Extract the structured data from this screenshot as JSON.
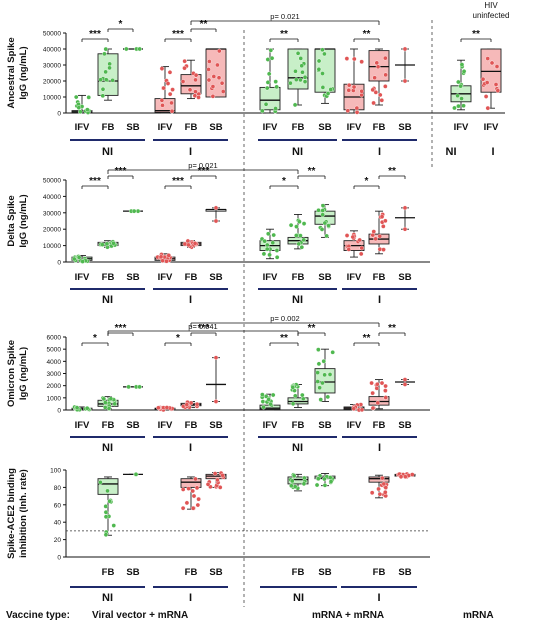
{
  "chart_data": [
    {
      "type": "box",
      "ylabel": "Ancestral Spike IgG (ng/mL)",
      "yticks": [
        "0",
        "10000",
        "20000",
        "30000",
        "40000",
        "50000"
      ],
      "ylim": [
        0,
        50000
      ],
      "pvalue": "p= 0.021",
      "groups": [
        {
          "ticks": [
            "IFV",
            "FB",
            "SB"
          ],
          "label": "NI"
        },
        {
          "ticks": [
            "IFV",
            "FB",
            "SB"
          ],
          "label": "I"
        },
        {
          "ticks": [
            "IFV",
            "FB",
            "SB"
          ],
          "label": "NI"
        },
        {
          "ticks": [
            "IFV",
            "FB",
            "SB"
          ],
          "label": "I"
        },
        {
          "ticks": [
            "IFV",
            "IFV"
          ],
          "labels": [
            "NI",
            "I"
          ]
        }
      ],
      "extra_header": "HIV uninfected",
      "significance": [
        {
          "from": "IFV",
          "to": "FB",
          "group": 0,
          "mark": "***"
        },
        {
          "from": "FB",
          "to": "SB",
          "group": 0,
          "mark": "*"
        },
        {
          "from": "IFV",
          "to": "FB",
          "group": 1,
          "mark": "***"
        },
        {
          "from": "FB",
          "to": "SB",
          "group": 1,
          "mark": "**"
        },
        {
          "from": "IFV",
          "to": "FB",
          "group": 2,
          "mark": "**"
        },
        {
          "from": "IFV",
          "to": "FB",
          "group": 3,
          "mark": "**"
        },
        {
          "from": "NI",
          "to": "I",
          "group": 4,
          "mark": "**"
        }
      ],
      "boxes": [
        {
          "group": 0,
          "tick": 0,
          "color": "green",
          "q1": 300,
          "median": 800,
          "q3": 1500,
          "min": 0,
          "max": 11000
        },
        {
          "group": 0,
          "tick": 1,
          "color": "green",
          "q1": 11000,
          "median": 20000,
          "q3": 37000,
          "min": 8000,
          "max": 40000
        },
        {
          "group": 0,
          "tick": 2,
          "color": "green",
          "q1": 40000,
          "median": 40000,
          "q3": 40000,
          "min": 40000,
          "max": 40000
        },
        {
          "group": 1,
          "tick": 0,
          "color": "red",
          "q1": 500,
          "median": 1500,
          "q3": 9000,
          "min": 0,
          "max": 29000
        },
        {
          "group": 1,
          "tick": 1,
          "color": "red",
          "q1": 12000,
          "median": 17000,
          "q3": 24000,
          "min": 9000,
          "max": 33000
        },
        {
          "group": 1,
          "tick": 2,
          "color": "red",
          "q1": 10000,
          "median": 40000,
          "q3": 40000,
          "min": 10000,
          "max": 40000
        },
        {
          "group": 2,
          "tick": 0,
          "color": "green",
          "q1": 2000,
          "median": 8000,
          "q3": 16000,
          "min": 0,
          "max": 40000
        },
        {
          "group": 2,
          "tick": 1,
          "color": "green",
          "q1": 15000,
          "median": 22000,
          "q3": 40000,
          "min": 5000,
          "max": 40000
        },
        {
          "group": 2,
          "tick": 2,
          "color": "green",
          "q1": 13000,
          "median": 40000,
          "q3": 40000,
          "min": 6000,
          "max": 40000
        },
        {
          "group": 3,
          "tick": 0,
          "color": "red",
          "q1": 2000,
          "median": 10000,
          "q3": 18000,
          "min": 0,
          "max": 40000
        },
        {
          "group": 3,
          "tick": 1,
          "color": "red",
          "q1": 20000,
          "median": 29000,
          "q3": 39000,
          "min": 5000,
          "max": 40000
        },
        {
          "group": 3,
          "tick": 2,
          "color": "black",
          "q1": 30000,
          "median": 30000,
          "q3": 30000,
          "min": 20000,
          "max": 40000
        },
        {
          "group": 4,
          "tick": 0,
          "color": "green",
          "q1": 7000,
          "median": 12000,
          "q3": 17000,
          "min": 2000,
          "max": 33000
        },
        {
          "group": 4,
          "tick": 1,
          "color": "red",
          "q1": 13000,
          "median": 26000,
          "q3": 40000,
          "min": 3000,
          "max": 40000
        }
      ]
    },
    {
      "type": "box",
      "ylabel": "Delta Spike IgG (ng/mL)",
      "yticks": [
        "0",
        "10000",
        "20000",
        "30000",
        "40000",
        "50000"
      ],
      "ylim": [
        0,
        50000
      ],
      "pvalue": "p= 0.021",
      "groups": [
        {
          "ticks": [
            "IFV",
            "FB",
            "SB"
          ],
          "label": "NI"
        },
        {
          "ticks": [
            "IFV",
            "FB",
            "SB"
          ],
          "label": "I"
        },
        {
          "ticks": [
            "IFV",
            "FB",
            "SB"
          ],
          "label": "NI"
        },
        {
          "ticks": [
            "IFV",
            "FB",
            "SB"
          ],
          "label": "I"
        }
      ],
      "significance": [
        {
          "from": "IFV",
          "to": "FB",
          "group": 0,
          "mark": "***"
        },
        {
          "from": "FB",
          "to": "SB",
          "group": 0,
          "mark": "***"
        },
        {
          "from": "IFV",
          "to": "FB",
          "group": 1,
          "mark": "***"
        },
        {
          "from": "FB",
          "to": "SB",
          "group": 1,
          "mark": "***"
        },
        {
          "from": "IFV",
          "to": "FB",
          "group": 2,
          "mark": "*"
        },
        {
          "from": "FB",
          "to": "SB",
          "group": 2,
          "mark": "**"
        },
        {
          "from": "IFV",
          "to": "FB",
          "group": 3,
          "mark": "*"
        },
        {
          "from": "FB",
          "to": "SB",
          "group": 3,
          "mark": "**"
        }
      ],
      "boxes": [
        {
          "group": 0,
          "tick": 0,
          "color": "green",
          "q1": 1000,
          "median": 2000,
          "q3": 3000,
          "min": 0,
          "max": 4000
        },
        {
          "group": 0,
          "tick": 1,
          "color": "green",
          "q1": 10000,
          "median": 11000,
          "q3": 12000,
          "min": 9000,
          "max": 13000
        },
        {
          "group": 0,
          "tick": 2,
          "color": "green",
          "q1": 31000,
          "median": 31000,
          "q3": 31000,
          "min": 31000,
          "max": 31000
        },
        {
          "group": 1,
          "tick": 0,
          "color": "red",
          "q1": 1000,
          "median": 2000,
          "q3": 3000,
          "min": 0,
          "max": 5000
        },
        {
          "group": 1,
          "tick": 1,
          "color": "red",
          "q1": 10000,
          "median": 11000,
          "q3": 12000,
          "min": 9000,
          "max": 13000
        },
        {
          "group": 1,
          "tick": 2,
          "color": "black",
          "q1": 31000,
          "median": 32000,
          "q3": 32000,
          "min": 25000,
          "max": 33000
        },
        {
          "group": 2,
          "tick": 0,
          "color": "green",
          "q1": 7000,
          "median": 10000,
          "q3": 13000,
          "min": 2000,
          "max": 20000
        },
        {
          "group": 2,
          "tick": 1,
          "color": "green",
          "q1": 11000,
          "median": 13000,
          "q3": 15000,
          "min": 8000,
          "max": 29000
        },
        {
          "group": 2,
          "tick": 2,
          "color": "green",
          "q1": 23000,
          "median": 28000,
          "q3": 31000,
          "min": 15000,
          "max": 35000
        },
        {
          "group": 3,
          "tick": 0,
          "color": "red",
          "q1": 7000,
          "median": 10000,
          "q3": 13000,
          "min": 3000,
          "max": 19000
        },
        {
          "group": 3,
          "tick": 1,
          "color": "red",
          "q1": 11000,
          "median": 14000,
          "q3": 17000,
          "min": 5000,
          "max": 31000
        },
        {
          "group": 3,
          "tick": 2,
          "color": "black",
          "q1": 27000,
          "median": 27000,
          "q3": 27000,
          "min": 20000,
          "max": 33000
        }
      ]
    },
    {
      "type": "box",
      "ylabel": "Omicron Spike IgG (ng/mL)",
      "yticks": [
        "0",
        "1000",
        "2000",
        "3000",
        "4000",
        "5000",
        "6000"
      ],
      "ylim": [
        0,
        6000
      ],
      "pvalues": [
        "p= 0.041",
        "p= 0.002"
      ],
      "groups": [
        {
          "ticks": [
            "IFV",
            "FB",
            "SB"
          ],
          "label": "NI"
        },
        {
          "ticks": [
            "IFV",
            "FB",
            "SB"
          ],
          "label": "I"
        },
        {
          "ticks": [
            "IFV",
            "FB",
            "SB"
          ],
          "label": "NI"
        },
        {
          "ticks": [
            "IFV",
            "FB",
            "SB"
          ],
          "label": "I"
        }
      ],
      "significance": [
        {
          "from": "IFV",
          "to": "FB",
          "group": 0,
          "mark": "*"
        },
        {
          "from": "FB",
          "to": "SB",
          "group": 0,
          "mark": "***"
        },
        {
          "from": "IFV",
          "to": "FB",
          "group": 1,
          "mark": "*"
        },
        {
          "from": "FB",
          "to": "SB",
          "group": 1,
          "mark": "***"
        },
        {
          "from": "IFV",
          "to": "FB",
          "group": 2,
          "mark": "**"
        },
        {
          "from": "FB",
          "to": "SB",
          "group": 2,
          "mark": "**"
        },
        {
          "from": "IFV",
          "to": "FB",
          "group": 3,
          "mark": "**"
        },
        {
          "from": "FB",
          "to": "SB",
          "group": 3,
          "mark": "**"
        }
      ],
      "boxes": [
        {
          "group": 0,
          "tick": 0,
          "color": "green",
          "q1": 50,
          "median": 100,
          "q3": 150,
          "min": 0,
          "max": 250
        },
        {
          "group": 0,
          "tick": 1,
          "color": "green",
          "q1": 300,
          "median": 500,
          "q3": 800,
          "min": 100,
          "max": 1100
        },
        {
          "group": 0,
          "tick": 2,
          "color": "green",
          "q1": 1900,
          "median": 1900,
          "q3": 1900,
          "min": 1900,
          "max": 1900
        },
        {
          "group": 1,
          "tick": 0,
          "color": "red",
          "q1": 50,
          "median": 100,
          "q3": 150,
          "min": 0,
          "max": 250
        },
        {
          "group": 1,
          "tick": 1,
          "color": "red",
          "q1": 350,
          "median": 450,
          "q3": 550,
          "min": 200,
          "max": 700
        },
        {
          "group": 1,
          "tick": 2,
          "color": "black",
          "q1": 2100,
          "median": 2100,
          "q3": 2100,
          "min": 700,
          "max": 4300
        },
        {
          "group": 2,
          "tick": 0,
          "color": "green",
          "q1": 50,
          "median": 150,
          "q3": 400,
          "min": 0,
          "max": 1300
        },
        {
          "group": 2,
          "tick": 1,
          "color": "green",
          "q1": 500,
          "median": 700,
          "q3": 1000,
          "min": 200,
          "max": 2100
        },
        {
          "group": 2,
          "tick": 2,
          "color": "green",
          "q1": 1400,
          "median": 2300,
          "q3": 3400,
          "min": 700,
          "max": 5000
        },
        {
          "group": 3,
          "tick": 0,
          "color": "red",
          "q1": 50,
          "median": 150,
          "q3": 250,
          "min": 0,
          "max": 450
        },
        {
          "group": 3,
          "tick": 1,
          "color": "red",
          "q1": 400,
          "median": 700,
          "q3": 1100,
          "min": 100,
          "max": 2500
        },
        {
          "group": 3,
          "tick": 2,
          "color": "black",
          "q1": 2300,
          "median": 2300,
          "q3": 2300,
          "min": 2100,
          "max": 2500
        }
      ]
    },
    {
      "type": "box",
      "ylabel": "Spike-ACE2 binding inhibition (Inh. rate)",
      "yticks": [
        "0",
        "20",
        "40",
        "60",
        "80",
        "100"
      ],
      "ylim": [
        0,
        100
      ],
      "reference_line": 30,
      "groups": [
        {
          "ticks": [
            "FB",
            "SB"
          ],
          "label": "NI"
        },
        {
          "ticks": [
            "FB",
            "SB"
          ],
          "label": "I"
        },
        {
          "ticks": [
            "FB",
            "SB"
          ],
          "label": "NI"
        },
        {
          "ticks": [
            "FB",
            "SB"
          ],
          "label": "I"
        }
      ],
      "boxes": [
        {
          "group": 0,
          "tick": 0,
          "color": "green",
          "q1": 72,
          "median": 84,
          "q3": 90,
          "min": 25,
          "max": 92
        },
        {
          "group": 0,
          "tick": 1,
          "color": "green",
          "q1": 95,
          "median": 95,
          "q3": 95,
          "min": 95,
          "max": 95
        },
        {
          "group": 1,
          "tick": 0,
          "color": "red",
          "q1": 80,
          "median": 86,
          "q3": 90,
          "min": 55,
          "max": 92
        },
        {
          "group": 1,
          "tick": 1,
          "color": "red",
          "q1": 90,
          "median": 93,
          "q3": 95,
          "min": 80,
          "max": 97
        },
        {
          "group": 2,
          "tick": 0,
          "color": "green",
          "q1": 84,
          "median": 89,
          "q3": 92,
          "min": 76,
          "max": 95
        },
        {
          "group": 2,
          "tick": 1,
          "color": "green",
          "q1": 90,
          "median": 91,
          "q3": 93,
          "min": 82,
          "max": 96
        },
        {
          "group": 3,
          "tick": 0,
          "color": "red",
          "q1": 86,
          "median": 90,
          "q3": 92,
          "min": 68,
          "max": 94
        },
        {
          "group": 3,
          "tick": 1,
          "color": "red",
          "q1": 93,
          "median": 94,
          "q3": 95,
          "min": 92,
          "max": 96
        }
      ]
    }
  ],
  "footer": {
    "vaccine_type_label": "Vaccine type:",
    "type_viral": "Viral vector + mRNA",
    "type_mrna_mrna": "mRNA + mRNA",
    "type_mrna": "mRNA"
  },
  "colors": {
    "green_fill": "#c8efc8",
    "green_dot": "#4fb84f",
    "red_fill": "#f6b9b9",
    "red_dot": "#e05555",
    "underline": "#1f2a6b"
  }
}
